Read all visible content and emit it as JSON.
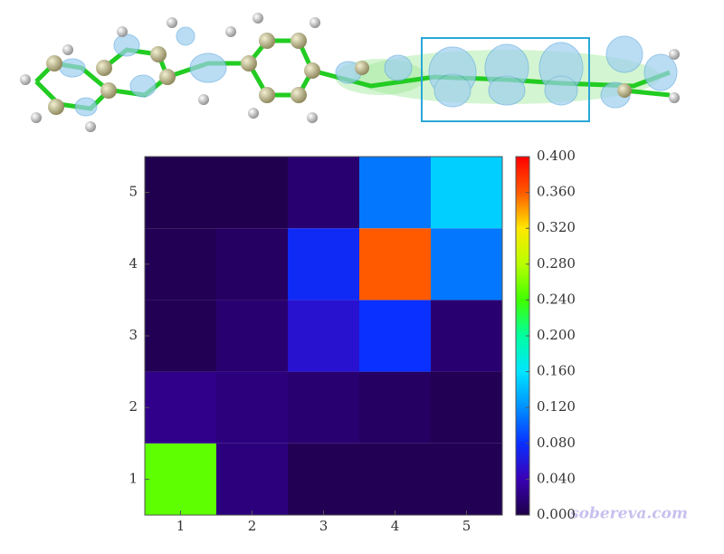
{
  "chart_data": {
    "type": "heatmap",
    "x": [
      1,
      2,
      3,
      4,
      5
    ],
    "y": [
      1,
      2,
      3,
      4,
      5
    ],
    "values": [
      [
        0.25,
        0.02,
        0.005,
        0.005,
        0.005
      ],
      [
        0.025,
        0.02,
        0.015,
        0.01,
        0.005
      ],
      [
        0.005,
        0.015,
        0.055,
        0.08,
        0.015
      ],
      [
        0.005,
        0.01,
        0.075,
        0.36,
        0.11
      ],
      [
        0.003,
        0.003,
        0.015,
        0.11,
        0.15
      ]
    ],
    "xlim": [
      0.5,
      5.5
    ],
    "ylim": [
      0.5,
      5.5
    ],
    "xticks": [
      1,
      2,
      3,
      4,
      5
    ],
    "yticks": [
      1,
      2,
      3,
      4,
      5
    ],
    "zlim": [
      0,
      0.4
    ],
    "zticks": [
      {
        "value": 0,
        "label": "0.000"
      },
      {
        "value": 0.04,
        "label": "0.040"
      },
      {
        "value": 0.08,
        "label": "0.080"
      },
      {
        "value": 0.12,
        "label": "0.120"
      },
      {
        "value": 0.16,
        "label": "0.160"
      },
      {
        "value": 0.2,
        "label": "0.200"
      },
      {
        "value": 0.24,
        "label": "0.240"
      },
      {
        "value": 0.28,
        "label": "0.280"
      },
      {
        "value": 0.32,
        "label": "0.320"
      },
      {
        "value": 0.36,
        "label": "0.360"
      },
      {
        "value": 0.4,
        "label": "0.400"
      }
    ],
    "colorscale": [
      "#1e0046",
      "#3a00b4",
      "#0a30ff",
      "#0090ff",
      "#00e4ff",
      "#00ffa0",
      "#40ff00",
      "#b8ff00",
      "#ffe800",
      "#ff5a00",
      "#ff0000"
    ],
    "watermark": "sobereva.com"
  }
}
